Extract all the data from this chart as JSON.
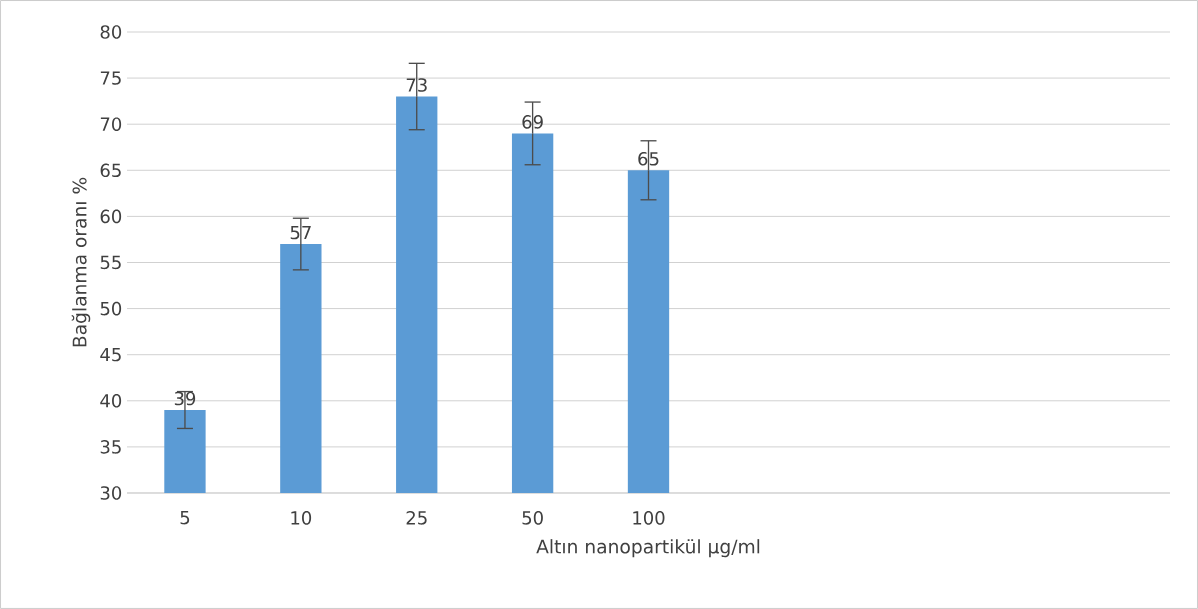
{
  "chart_data": {
    "type": "bar",
    "categories": [
      "5",
      "10",
      "25",
      "50",
      "100",
      null,
      null,
      null,
      null
    ],
    "values": [
      39,
      57,
      73,
      69,
      65,
      null,
      null,
      null,
      null
    ],
    "errors": [
      2,
      2.8,
      3.6,
      3.4,
      3.2,
      null,
      null,
      null,
      null
    ],
    "color": "#5b9bd5",
    "xlabel": "Altın nanopartikül µg/ml",
    "ylabel": "Bağlanma oranı %",
    "ylim": [
      30,
      80
    ],
    "yticks": [
      30,
      35,
      40,
      45,
      50,
      55,
      60,
      65,
      70,
      75,
      80
    ],
    "grid": "y",
    "data_labels": true
  }
}
